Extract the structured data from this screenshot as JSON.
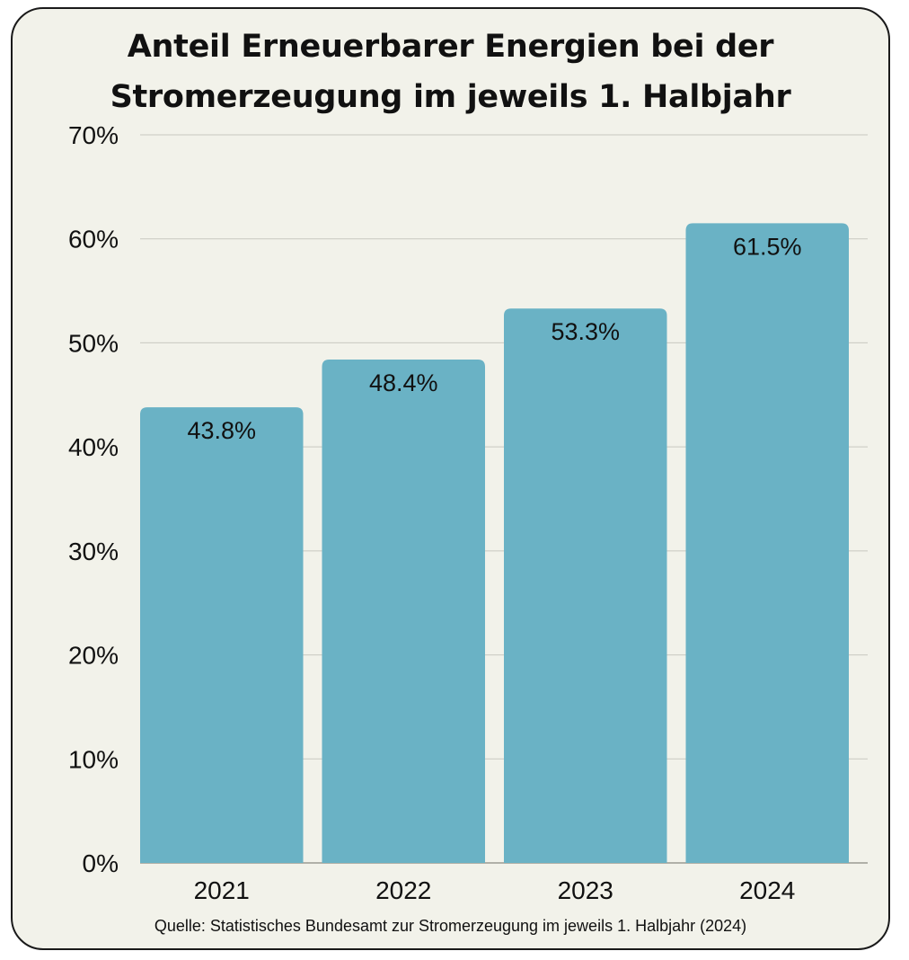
{
  "chart_data": {
    "type": "bar",
    "title_lines": [
      "Anteil Erneuerbarer Energien bei der",
      "Stromerzeugung im jeweils 1. Halbjahr"
    ],
    "categories": [
      "2021",
      "2022",
      "2023",
      "2024"
    ],
    "values": [
      43.8,
      48.4,
      53.3,
      61.5
    ],
    "data_labels": [
      "43.8%",
      "48.4%",
      "53.3%",
      "61.5%"
    ],
    "ylim": [
      0,
      70
    ],
    "yticks": [
      0,
      10,
      20,
      30,
      40,
      50,
      60,
      70
    ],
    "ytick_labels": [
      "0%",
      "10%",
      "20%",
      "30%",
      "40%",
      "50%",
      "60%",
      "70%"
    ],
    "xlabel": "",
    "ylabel": "",
    "grid": true,
    "legend": "none",
    "bar_color": "#6ab2c5",
    "grid_color": "#c8c8c0",
    "source": "Quelle: Statistisches Bundesamt zur Stromerzeugung im jeweils 1. Halbjahr (2024)"
  }
}
